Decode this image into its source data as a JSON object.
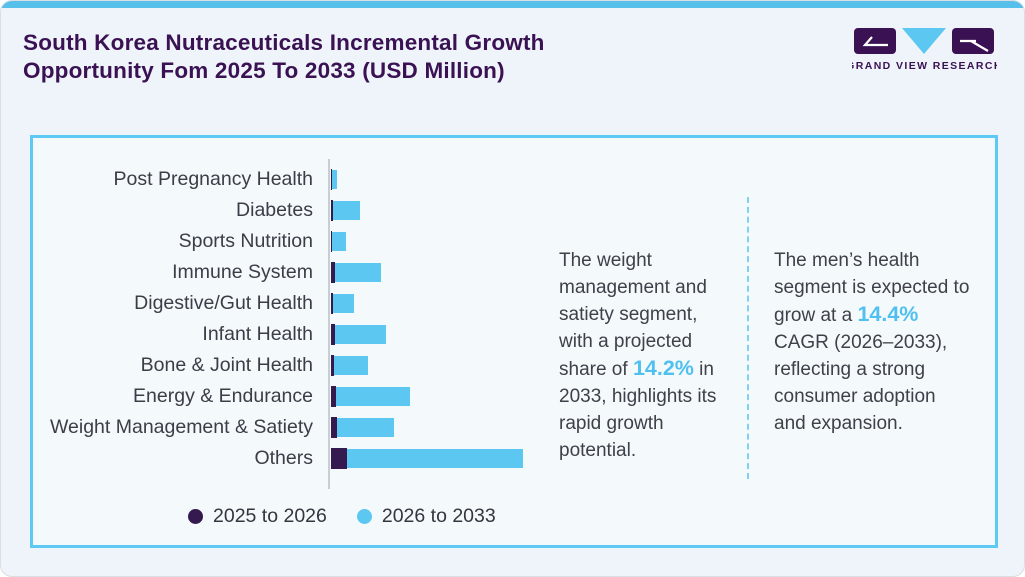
{
  "page": {
    "background": "#eef4f9",
    "topbar_color": "#57c0ea"
  },
  "header": {
    "title_line1": "South Korea Nutraceuticals Incremental Growth",
    "title_line2": "Opportunity Fom 2025 To 2033 (USD Million)",
    "title_color": "#3a1254"
  },
  "logo": {
    "brand": "GRAND VIEW RESEARCH"
  },
  "chart_data": {
    "type": "bar",
    "orientation": "horizontal",
    "stacked": true,
    "title": "South Korea Nutraceuticals Incremental Growth Opportunity Fom 2025 To 2033 (USD Million)",
    "value_axis_note": "no numeric axis shown; values are bar lengths estimated in px (relative units)",
    "categories": [
      "Post Pregnancy Health",
      "Diabetes",
      "Sports Nutrition",
      "Immune System",
      "Digestive/Gut Health",
      "Infant Health",
      "Bone & Joint Health",
      "Energy & Endurance",
      "Weight Management & Satiety",
      "Others"
    ],
    "series": [
      {
        "name": "2025 to 2026",
        "color": "#341a4e",
        "values": [
          1,
          2,
          1,
          4,
          2,
          4,
          3,
          5,
          6,
          16
        ]
      },
      {
        "name": "2026 to 2033",
        "color": "#5cc8f2",
        "values": [
          5,
          27,
          14,
          46,
          21,
          51,
          34,
          74,
          57,
          176
        ]
      }
    ],
    "legend_position": "bottom",
    "axis_line_color": "#c9ced3"
  },
  "annotations": {
    "left": {
      "text_before": "The weight management and satiety segment, with a projected share of ",
      "highlight": "14.2%",
      "text_after": " in 2033, highlights its rapid growth potential."
    },
    "right": {
      "text_before": "The men’s health segment is expected to grow at a ",
      "highlight": "14.4%",
      "text_after": " CAGR (2026–2033), reflecting a strong consumer adoption and expansion."
    },
    "highlight_color": "#4fc0ef"
  }
}
